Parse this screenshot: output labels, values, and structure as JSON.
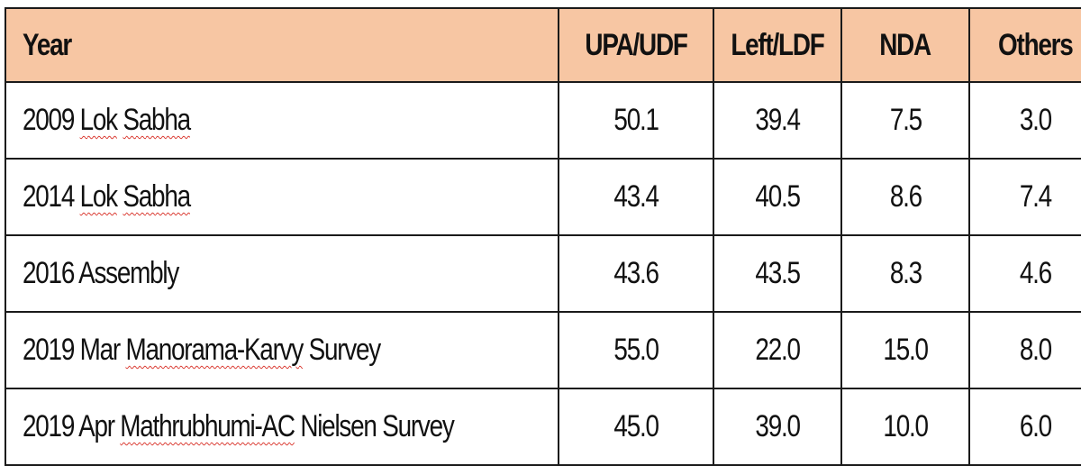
{
  "table": {
    "headers": [
      "Year",
      "UPA/UDF",
      "Left/LDF",
      "NDA",
      "Others"
    ],
    "rows": [
      {
        "year_parts": [
          {
            "text": "2009 ",
            "flag": false
          },
          {
            "text": "Lok",
            "flag": true
          },
          {
            "text": " ",
            "flag": false
          },
          {
            "text": "Sabha",
            "flag": true
          }
        ],
        "upa": "50.1",
        "left": "39.4",
        "nda": "7.5",
        "others": "3.0"
      },
      {
        "year_parts": [
          {
            "text": "2014 ",
            "flag": false
          },
          {
            "text": "Lok",
            "flag": true
          },
          {
            "text": " ",
            "flag": false
          },
          {
            "text": "Sabha",
            "flag": true
          }
        ],
        "upa": "43.4",
        "left": "40.5",
        "nda": "8.6",
        "others": "7.4"
      },
      {
        "year_parts": [
          {
            "text": "2016 Assembly",
            "flag": false
          }
        ],
        "upa": "43.6",
        "left": "43.5",
        "nda": "8.3",
        "others": "4.6"
      },
      {
        "year_parts": [
          {
            "text": "2019 Mar ",
            "flag": false
          },
          {
            "text": "Manorama-Karvy",
            "flag": true
          },
          {
            "text": " Survey",
            "flag": false
          }
        ],
        "upa": "55.0",
        "left": "22.0",
        "nda": "15.0",
        "others": "8.0"
      },
      {
        "year_parts": [
          {
            "text": "2019 Apr ",
            "flag": false
          },
          {
            "text": "Mathrubhumi-AC",
            "flag": true
          },
          {
            "text": " Nielsen Survey",
            "flag": false
          }
        ],
        "upa": "45.0",
        "left": "39.0",
        "nda": "10.0",
        "others": "6.0"
      }
    ]
  },
  "colors": {
    "header_bg": "#f7c6a3",
    "border": "#1a1a1a",
    "spellcheck_underline": "#d9342b"
  }
}
